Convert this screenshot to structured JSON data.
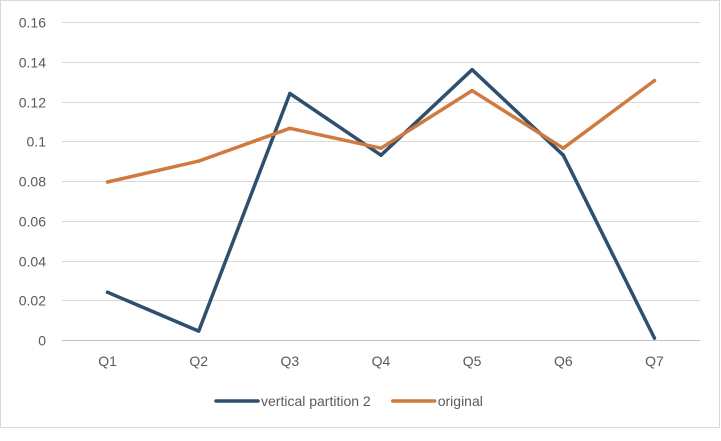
{
  "chart_data": {
    "type": "line",
    "categories": [
      "Q1",
      "Q2",
      "Q3",
      "Q4",
      "Q5",
      "Q6",
      "Q7"
    ],
    "series": [
      {
        "name": "vertical partition 2",
        "color": "#2f4f6f",
        "values": [
          0.024,
          0.0045,
          0.124,
          0.093,
          0.136,
          0.093,
          0.001
        ]
      },
      {
        "name": "original",
        "color": "#d07a3f",
        "values": [
          0.0795,
          0.09,
          0.1065,
          0.0965,
          0.1255,
          0.0965,
          0.1305
        ]
      }
    ],
    "ylim": [
      0,
      0.16
    ],
    "yticks": [
      0,
      0.02,
      0.04,
      0.06,
      0.08,
      0.1,
      0.12,
      0.14,
      0.16
    ],
    "ytick_labels": [
      "0",
      "0.02",
      "0.04",
      "0.06",
      "0.08",
      "0.1",
      "0.12",
      "0.14",
      "0.16"
    ],
    "grid": true,
    "legend_position": "bottom"
  }
}
